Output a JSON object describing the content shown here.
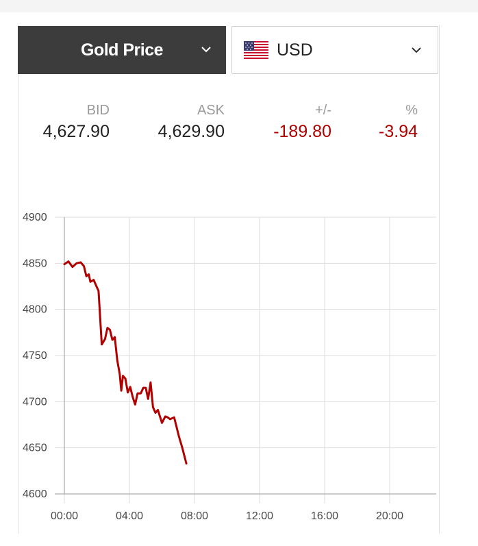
{
  "controls": {
    "metal_label": "Gold Price",
    "currency_label": "USD",
    "currency_flag": "us-flag-icon"
  },
  "quote": {
    "bid_label": "BID",
    "ask_label": "ASK",
    "change_label": "+/-",
    "percent_label": "%",
    "bid": "4,627.90",
    "ask": "4,629.90",
    "change": "-189.80",
    "percent": "-3.94"
  },
  "colors": {
    "line": "#b00000",
    "negative": "#b00000",
    "dark_button": "#3c3c3c"
  },
  "chart_data": {
    "type": "line",
    "title": "",
    "xlabel": "",
    "ylabel": "",
    "x_ticks": [
      "00:00",
      "04:00",
      "08:00",
      "12:00",
      "16:00",
      "20:00"
    ],
    "y_ticks": [
      "4900",
      "4850",
      "4800",
      "4750",
      "4700",
      "4650",
      "4600"
    ],
    "xlim": [
      0,
      23
    ],
    "ylim": [
      4600,
      4900
    ],
    "grid": true,
    "series": [
      {
        "name": "Gold Price (USD)",
        "x": [
          0.0,
          0.25,
          0.5,
          0.75,
          1.0,
          1.2,
          1.35,
          1.5,
          1.6,
          1.8,
          1.95,
          2.1,
          2.3,
          2.5,
          2.65,
          2.8,
          2.95,
          3.1,
          3.25,
          3.4,
          3.5,
          3.6,
          3.75,
          3.9,
          4.05,
          4.2,
          4.35,
          4.5,
          4.7,
          4.85,
          5.0,
          5.15,
          5.3,
          5.45,
          5.6,
          5.75,
          6.0,
          6.2,
          6.35,
          6.5,
          6.75,
          7.05,
          7.25,
          7.5
        ],
        "values": [
          4849,
          4852,
          4846,
          4850,
          4851,
          4847,
          4836,
          4838,
          4830,
          4832,
          4826,
          4820,
          4762,
          4768,
          4780,
          4778,
          4767,
          4770,
          4745,
          4730,
          4712,
          4728,
          4725,
          4710,
          4716,
          4705,
          4697,
          4709,
          4709,
          4715,
          4715,
          4703,
          4721,
          4694,
          4688,
          4691,
          4677,
          4684,
          4683,
          4681,
          4683,
          4662,
          4650,
          4633
        ]
      }
    ]
  }
}
